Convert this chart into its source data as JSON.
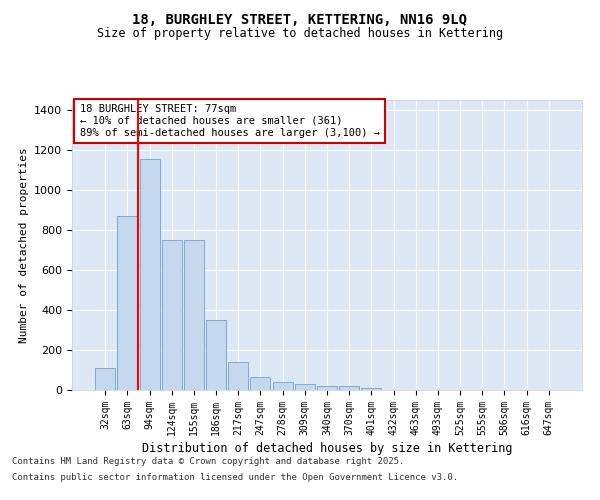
{
  "title": "18, BURGHLEY STREET, KETTERING, NN16 9LQ",
  "subtitle": "Size of property relative to detached houses in Kettering",
  "xlabel": "Distribution of detached houses by size in Kettering",
  "ylabel": "Number of detached properties",
  "categories": [
    "32sqm",
    "63sqm",
    "94sqm",
    "124sqm",
    "155sqm",
    "186sqm",
    "217sqm",
    "247sqm",
    "278sqm",
    "309sqm",
    "340sqm",
    "370sqm",
    "401sqm",
    "432sqm",
    "463sqm",
    "493sqm",
    "525sqm",
    "555sqm",
    "586sqm",
    "616sqm",
    "647sqm"
  ],
  "values": [
    110,
    870,
    1155,
    752,
    752,
    350,
    140,
    65,
    38,
    30,
    20,
    18,
    10,
    0,
    0,
    0,
    0,
    0,
    0,
    0,
    0
  ],
  "bar_color": "#c5d8ed",
  "bar_edge_color": "#7aadd4",
  "red_line_x": 1.5,
  "annotation_title": "18 BURGHLEY STREET: 77sqm",
  "annotation_line1": "← 10% of detached houses are smaller (361)",
  "annotation_line2": "89% of semi-detached houses are larger (3,100) →",
  "annotation_box_color": "#ffffff",
  "annotation_box_edge_color": "#cc0000",
  "ylim": [
    0,
    1450
  ],
  "yticks": [
    0,
    200,
    400,
    600,
    800,
    1000,
    1200,
    1400
  ],
  "background_color": "#dce8f5",
  "grid_color": "#ffffff",
  "fig_background": "#ffffff",
  "footer_line1": "Contains HM Land Registry data © Crown copyright and database right 2025.",
  "footer_line2": "Contains public sector information licensed under the Open Government Licence v3.0."
}
